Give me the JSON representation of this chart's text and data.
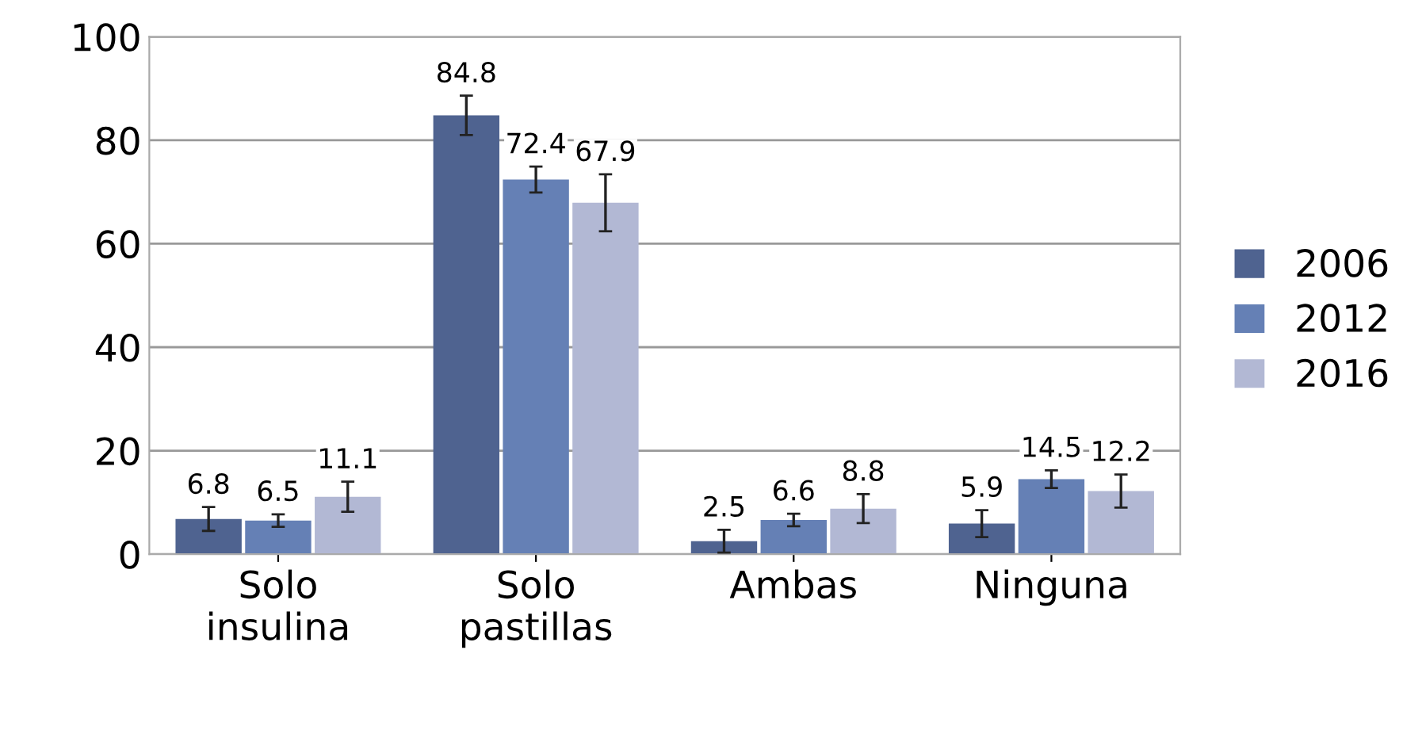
{
  "chart_data": {
    "type": "bar",
    "categories": [
      "Solo\ninsulina",
      "Solo\npastillas",
      "Ambas",
      "Ninguna"
    ],
    "series": [
      {
        "name": "2006",
        "color": "#4f6390",
        "values": [
          6.8,
          84.8,
          2.5,
          5.9
        ],
        "errors": [
          2.3,
          3.8,
          2.2,
          2.6
        ]
      },
      {
        "name": "2012",
        "color": "#6580b5",
        "values": [
          6.5,
          72.4,
          6.6,
          14.5
        ],
        "errors": [
          1.2,
          2.5,
          1.2,
          1.7
        ]
      },
      {
        "name": "2016",
        "color": "#b2b8d4",
        "values": [
          11.1,
          67.9,
          8.8,
          12.2
        ],
        "errors": [
          2.9,
          5.5,
          2.8,
          3.2
        ]
      }
    ],
    "ylim": [
      0,
      100
    ],
    "yticks": [
      0,
      20,
      40,
      60,
      80,
      100
    ],
    "grid": "y",
    "legend": "right",
    "data_labels": true
  }
}
